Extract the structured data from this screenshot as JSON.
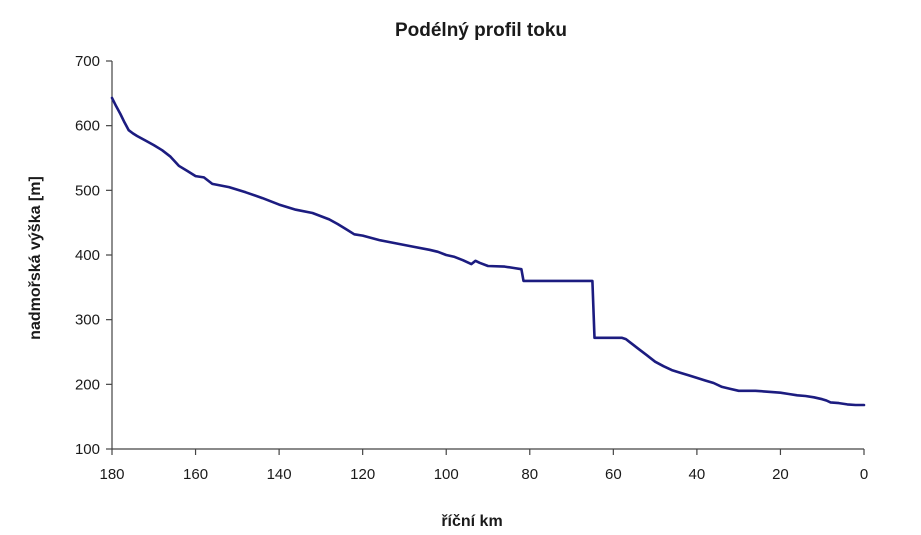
{
  "chart_data": {
    "type": "line",
    "title": "Podélný profil toku",
    "xlabel": "říční km",
    "ylabel": "nadmořská výška [m]",
    "xlim": [
      180,
      0
    ],
    "ylim": [
      100,
      700
    ],
    "x_reversed": true,
    "x_ticks": [
      "180",
      "160",
      "140",
      "120",
      "100",
      "80",
      "60",
      "40",
      "20",
      "0"
    ],
    "y_ticks": [
      "700",
      "600",
      "500",
      "400",
      "300",
      "200",
      "100"
    ],
    "grid": false,
    "legend": "none",
    "line_color": "#1c1c80",
    "series": [
      {
        "x": [
          180,
          179,
          178,
          177,
          176,
          175,
          174,
          172,
          170,
          168,
          166,
          164,
          162,
          160,
          158,
          156,
          152,
          148,
          144,
          140,
          136,
          132,
          128,
          126,
          124,
          122,
          120,
          116,
          112,
          108,
          104,
          102,
          100,
          98,
          96,
          94,
          93,
          92,
          90,
          86,
          84,
          82,
          81.5,
          80,
          76,
          72,
          68,
          65,
          64.5,
          62,
          58,
          57,
          56,
          54,
          52,
          50,
          48,
          46,
          44,
          42,
          40,
          38,
          36,
          34,
          32,
          30,
          28,
          26,
          24,
          22,
          20,
          18,
          16,
          14,
          12,
          10,
          9,
          8,
          6,
          4,
          2,
          0
        ],
        "y": [
          643,
          630,
          618,
          605,
          593,
          588,
          584,
          577,
          570,
          562,
          552,
          538,
          530,
          522,
          520,
          510,
          505,
          497,
          488,
          478,
          470,
          465,
          455,
          448,
          440,
          432,
          430,
          423,
          418,
          413,
          408,
          405,
          400,
          397,
          392,
          386,
          391,
          388,
          383,
          382,
          380,
          378,
          360,
          360,
          360,
          360,
          360,
          360,
          272,
          272,
          272,
          270,
          265,
          255,
          245,
          235,
          228,
          222,
          218,
          214,
          210,
          206,
          202,
          196,
          193,
          190,
          190,
          190,
          189,
          188,
          187,
          185,
          183,
          182,
          180,
          177,
          175,
          172,
          171,
          169,
          168,
          168
        ]
      }
    ]
  }
}
